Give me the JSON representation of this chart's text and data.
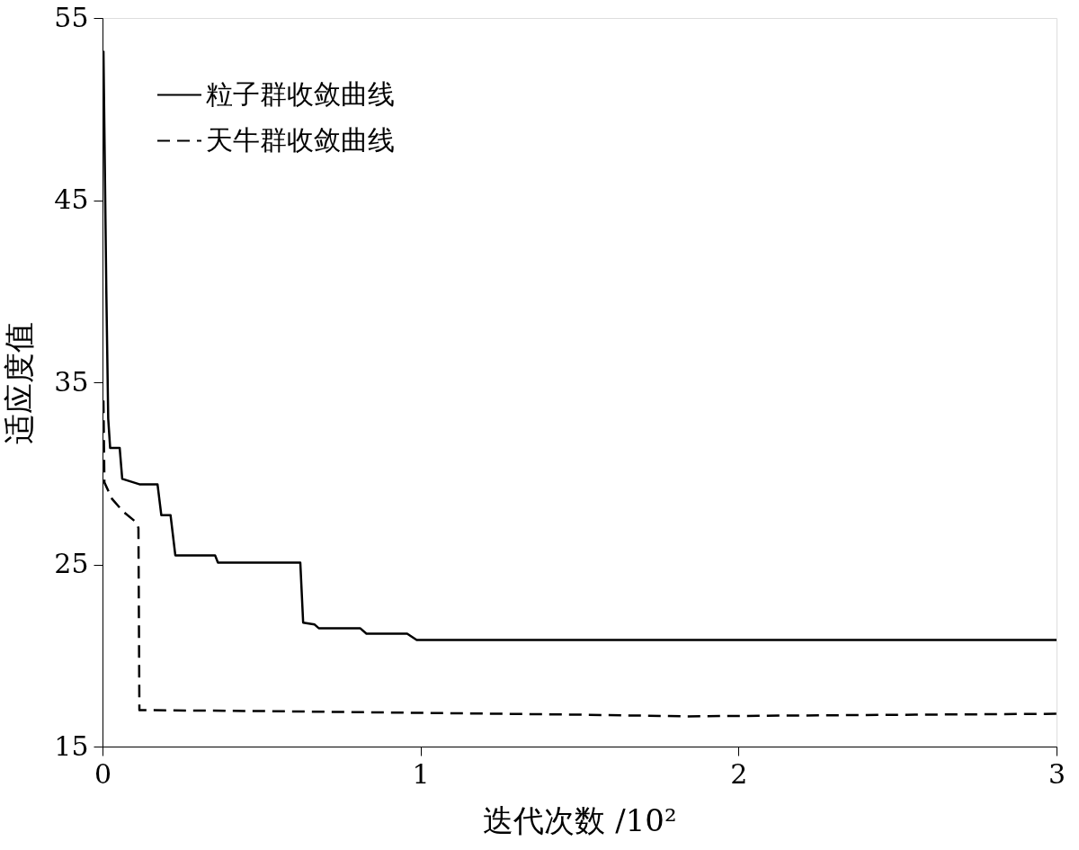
{
  "chart_data": {
    "type": "line",
    "xlabel": "迭代次数 /10²",
    "ylabel": "适应度值",
    "xlim": [
      0,
      3
    ],
    "xticks": [
      0,
      1,
      2,
      3
    ],
    "ylim": [
      15,
      55
    ],
    "yticks": [
      15,
      25,
      35,
      45,
      55
    ],
    "grid": false,
    "legend": "top left",
    "marker": "none",
    "series": [
      {
        "name": "粒子群收敛曲线",
        "color": "#000000",
        "line_style": "solid",
        "x": [
          0.003,
          0.012,
          0.018,
          0.024,
          0.054,
          0.062,
          0.116,
          0.173,
          0.185,
          0.214,
          0.229,
          0.354,
          0.363,
          0.622,
          0.631,
          0.667,
          0.68,
          0.81,
          0.83,
          0.958,
          0.988,
          3
        ],
        "values": [
          53.2,
          40,
          33,
          31.4,
          31.4,
          29.7,
          29.4,
          29.4,
          27.7,
          27.7,
          25.5,
          25.5,
          25.1,
          25.1,
          21.8,
          21.7,
          21.5,
          21.5,
          21.2,
          21.2,
          20.85,
          20.85
        ]
      },
      {
        "name": "天牛群收敛曲线",
        "color": "#000000",
        "line_style": "dashed",
        "x": [
          0.003,
          0.006,
          0.03,
          0.065,
          0.107,
          0.113,
          0.116,
          0.5,
          1.0,
          1.5,
          1.84,
          2.3,
          3
        ],
        "values": [
          34,
          29.5,
          28.6,
          27.9,
          27.3,
          27.0,
          17.0,
          16.95,
          16.85,
          16.75,
          16.66,
          16.72,
          16.8
        ]
      }
    ]
  }
}
